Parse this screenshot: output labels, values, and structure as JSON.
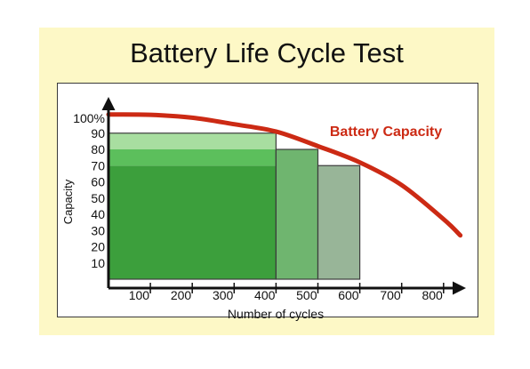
{
  "colors": {
    "panel_bg": "#fdf8c6",
    "plot_bg": "#ffffff",
    "curve": "#cc2a14",
    "axis": "#111111"
  },
  "chart_data": {
    "type": "bar",
    "title": "Battery Life Cycle Test",
    "xlabel": "Number of cycles",
    "ylabel": "Capacity",
    "xlim": [
      0,
      850
    ],
    "ylim": [
      0,
      100
    ],
    "x_ticks": [
      100,
      200,
      300,
      400,
      500,
      600,
      700,
      800
    ],
    "y_ticks": [
      10,
      20,
      30,
      40,
      50,
      60,
      70,
      80,
      90
    ],
    "y_top_label": "100%",
    "bars": [
      {
        "x_start": 0,
        "x_end": 400,
        "bands": [
          {
            "from": 0,
            "to": 70,
            "color": "#3c9f3c"
          },
          {
            "from": 70,
            "to": 80,
            "color": "#5cbf5c"
          },
          {
            "from": 80,
            "to": 90,
            "color": "#a8dea0"
          }
        ]
      },
      {
        "x_start": 400,
        "x_end": 500,
        "bands": [
          {
            "from": 0,
            "to": 80,
            "color": "#6fb56f"
          }
        ]
      },
      {
        "x_start": 500,
        "x_end": 600,
        "bands": [
          {
            "from": 0,
            "to": 70,
            "color": "#98b598"
          }
        ]
      }
    ],
    "series": [
      {
        "name": "Battery Capacity",
        "type": "line",
        "color": "#cc2a14",
        "x": [
          0,
          100,
          200,
          300,
          400,
          500,
          600,
          700,
          800,
          840
        ],
        "values": [
          101.5,
          101.3,
          99.5,
          95.5,
          91,
          82,
          72,
          58,
          37,
          27
        ]
      }
    ],
    "grid": false,
    "legend": "top-right"
  }
}
